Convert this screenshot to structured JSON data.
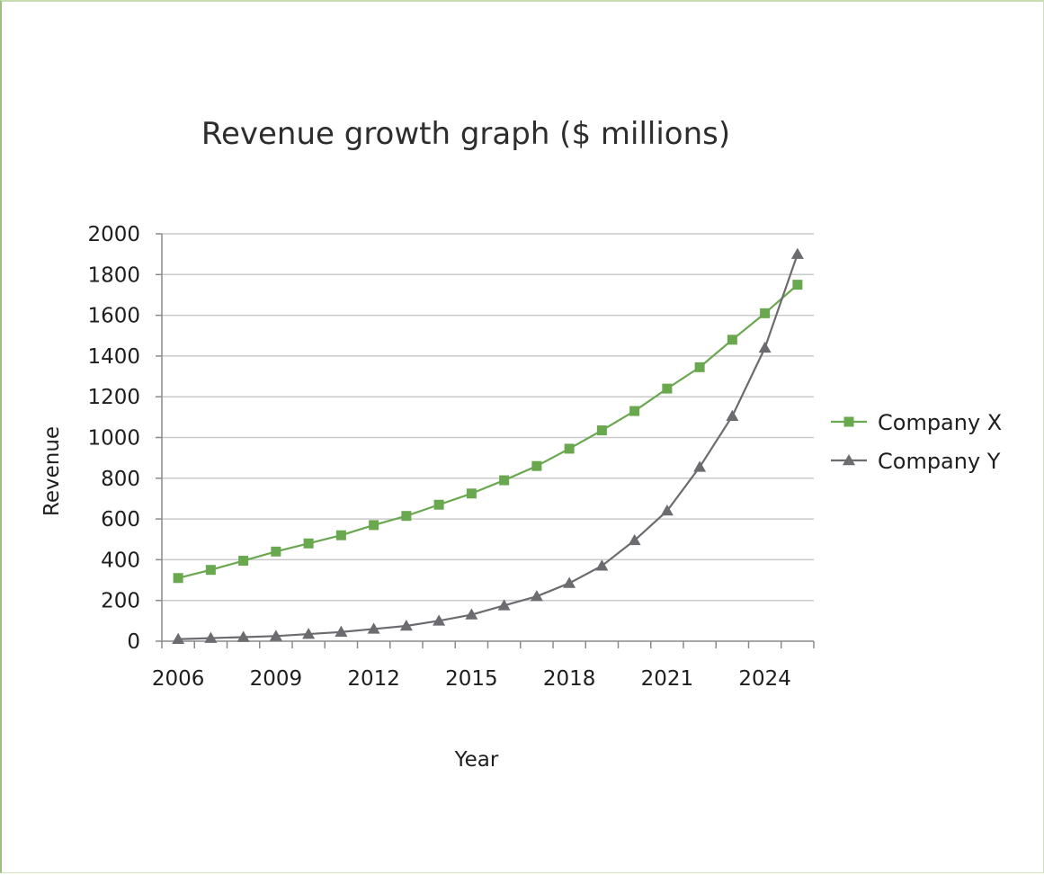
{
  "chart_data": {
    "type": "line",
    "title": "Revenue growth graph ($ millions)",
    "xlabel": "Year",
    "ylabel": "Revenue",
    "ylim": [
      0,
      2000
    ],
    "yticks": [
      "0",
      "200",
      "400",
      "600",
      "800",
      "1000",
      "1200",
      "1400",
      "1600",
      "1800",
      "2000"
    ],
    "xtick_labels": [
      "2006",
      "2009",
      "2012",
      "2015",
      "2018",
      "2021",
      "2024"
    ],
    "x": [
      2006,
      2007,
      2008,
      2009,
      2010,
      2011,
      2012,
      2013,
      2014,
      2015,
      2016,
      2017,
      2018,
      2019,
      2020,
      2021,
      2022,
      2023,
      2024,
      2025
    ],
    "grid": true,
    "legend_position": "right",
    "series": [
      {
        "name": "Company X",
        "color": "#6aa84f",
        "marker": "square",
        "values": [
          310,
          350,
          395,
          440,
          480,
          520,
          570,
          615,
          670,
          725,
          790,
          860,
          945,
          1035,
          1130,
          1240,
          1345,
          1480,
          1610,
          1750
        ]
      },
      {
        "name": "Company Y",
        "color": "#6b6b70",
        "marker": "triangle",
        "values": [
          10,
          15,
          20,
          25,
          35,
          45,
          60,
          75,
          100,
          130,
          175,
          220,
          285,
          370,
          495,
          640,
          855,
          1105,
          1440,
          1900
        ]
      }
    ]
  }
}
